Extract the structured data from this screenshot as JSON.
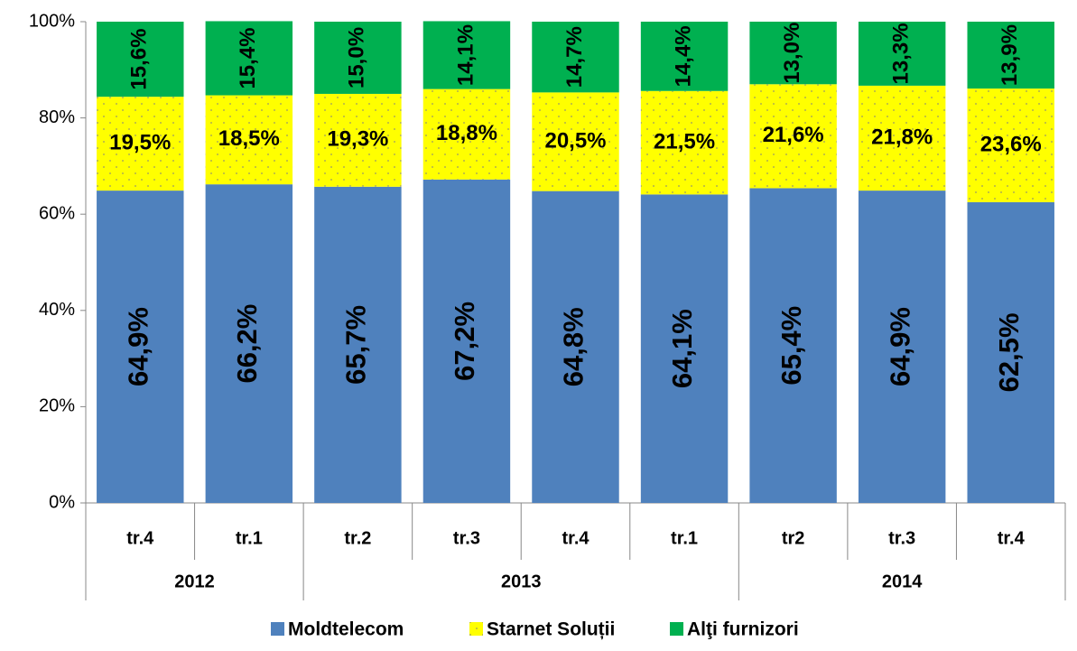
{
  "chart_data": {
    "type": "stacked_bar",
    "categories": [
      "tr.4",
      "tr.1",
      "tr.2",
      "tr.3",
      "tr.4",
      "tr.1",
      "tr2",
      "tr.3",
      "tr.4"
    ],
    "groups": [
      {
        "name": "2012",
        "span": 2
      },
      {
        "name": "2013",
        "span": 4
      },
      {
        "name": "2014",
        "span": 3
      }
    ],
    "series": [
      {
        "name": "Moldtelecom",
        "color": "#4f81bd",
        "values": [
          64.9,
          66.2,
          65.7,
          67.2,
          64.8,
          64.1,
          65.4,
          64.9,
          62.5
        ],
        "value_labels": [
          "64,9%",
          "66,2%",
          "65,7%",
          "67,2%",
          "64,8%",
          "64,1%",
          "65,4%",
          "64,9%",
          "62,5%"
        ]
      },
      {
        "name": "Starnet Soluții",
        "color": "#ffff00",
        "values": [
          19.5,
          18.5,
          19.3,
          18.8,
          20.5,
          21.5,
          21.6,
          21.8,
          23.6
        ],
        "value_labels": [
          "19,5%",
          "18,5%",
          "19,3%",
          "18,8%",
          "20,5%",
          "21,5%",
          "21,6%",
          "21,8%",
          "23,6%"
        ]
      },
      {
        "name": "Alţi furnizori",
        "color": "#00b050",
        "values": [
          15.6,
          15.4,
          15.0,
          14.1,
          14.7,
          14.4,
          13.0,
          13.3,
          13.9
        ],
        "value_labels": [
          "15,6%",
          "15,4%",
          "15,0%",
          "14,1%",
          "14,7%",
          "14,4%",
          "13,0%",
          "13,3%",
          "13,9%"
        ]
      }
    ],
    "ylim": [
      0,
      100
    ],
    "yticks": [
      {
        "value": 0,
        "label": "0%"
      },
      {
        "value": 20,
        "label": "20%"
      },
      {
        "value": 40,
        "label": "40%"
      },
      {
        "value": 60,
        "label": "60%"
      },
      {
        "value": 80,
        "label": "80%"
      },
      {
        "value": 100,
        "label": "100%"
      }
    ],
    "legend": "bottom"
  }
}
